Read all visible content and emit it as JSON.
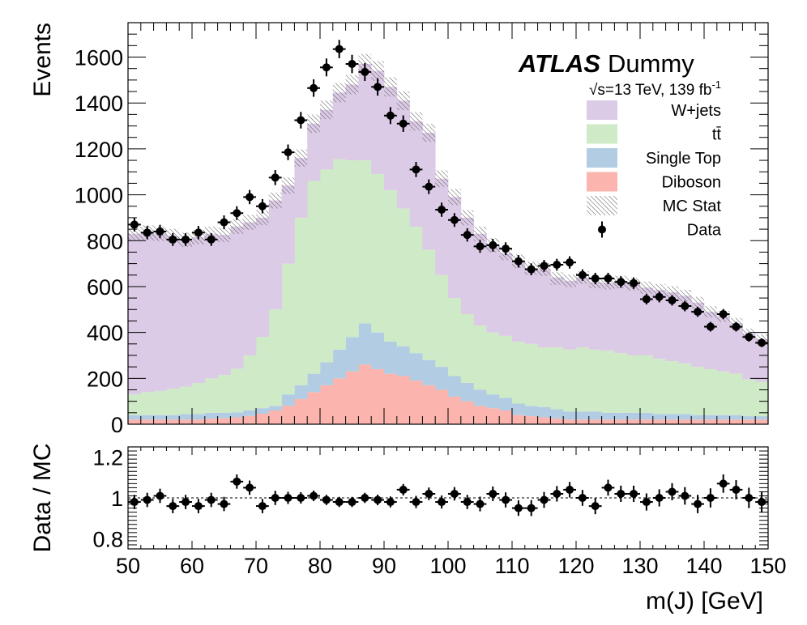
{
  "chart_data": {
    "type": "bar",
    "stacked": true,
    "xlabel": "m(J) [GeV]",
    "ylabel": "Events",
    "ratio_ylabel": "Data / MC",
    "xlim": [
      50,
      150
    ],
    "ylim": [
      0,
      1750
    ],
    "ratio_ylim": [
      0.75,
      1.25
    ],
    "bin_width": 2,
    "x_ticks": [
      50,
      60,
      70,
      80,
      90,
      100,
      110,
      120,
      130,
      140,
      150
    ],
    "y_ticks": [
      0,
      200,
      400,
      600,
      800,
      1000,
      1200,
      1400,
      1600
    ],
    "ratio_ticks": [
      0.8,
      1,
      1.2
    ],
    "ratio_tick_labels": [
      "0.8",
      "1",
      "1.2"
    ],
    "ratio_reference": 1,
    "labels": {
      "experiment": "ATLAS",
      "experiment_suffix": "Dummy",
      "energy_sqrt": "√s",
      "energy_text": "=13 TeV, 139 fb",
      "energy_sup": "-1"
    },
    "legend_position": "top-right",
    "legend": [
      {
        "label": "W+jets",
        "style": "fill",
        "color": "#dccbe6"
      },
      {
        "label": "tt̄",
        "style": "fill",
        "color": "#cfeac6"
      },
      {
        "label": "Single Top",
        "style": "fill",
        "color": "#b2cde3"
      },
      {
        "label": "Diboson",
        "style": "fill",
        "color": "#fbb4ae"
      },
      {
        "label": "MC Stat",
        "style": "hatch",
        "color": "#555555"
      },
      {
        "label": "Data",
        "style": "marker",
        "color": "#000000"
      }
    ],
    "series": [
      {
        "name": "Diboson",
        "color": "#fbb4ae",
        "values": [
          20,
          20,
          20,
          20,
          20,
          20,
          24,
          26,
          30,
          36,
          46,
          60,
          80,
          110,
          140,
          170,
          200,
          230,
          260,
          240,
          220,
          210,
          190,
          170,
          150,
          120,
          100,
          80,
          70,
          60,
          40,
          35,
          30,
          25,
          20,
          20,
          20,
          20,
          20,
          20,
          20,
          20,
          20,
          20,
          20,
          20,
          20,
          20,
          20,
          20
        ]
      },
      {
        "name": "Single Top",
        "color": "#b2cde3",
        "values": [
          20,
          20,
          20,
          20,
          24,
          25,
          26,
          24,
          22,
          24,
          24,
          20,
          50,
          60,
          80,
          100,
          125,
          150,
          180,
          160,
          140,
          130,
          120,
          110,
          100,
          90,
          80,
          70,
          60,
          55,
          50,
          45,
          45,
          40,
          35,
          35,
          35,
          30,
          30,
          30,
          30,
          25,
          25,
          25,
          20,
          20,
          20,
          20,
          15,
          15
        ]
      },
      {
        "name": "tt̄",
        "color": "#cfeac6",
        "values": [
          90,
          100,
          105,
          115,
          120,
          135,
          150,
          165,
          190,
          240,
          310,
          420,
          570,
          730,
          840,
          840,
          830,
          770,
          710,
          690,
          660,
          600,
          550,
          480,
          400,
          340,
          300,
          280,
          270,
          270,
          270,
          270,
          260,
          270,
          270,
          280,
          270,
          270,
          260,
          250,
          250,
          240,
          230,
          220,
          210,
          200,
          190,
          180,
          160,
          150
        ]
      },
      {
        "name": "W+jets",
        "color": "#dccbe6",
        "values": [
          700,
          695,
          685,
          665,
          640,
          635,
          630,
          610,
          620,
          580,
          520,
          475,
          340,
          260,
          250,
          260,
          290,
          330,
          420,
          450,
          450,
          470,
          460,
          510,
          420,
          440,
          420,
          400,
          380,
          360,
          350,
          330,
          340,
          305,
          300,
          305,
          295,
          295,
          310,
          310,
          295,
          300,
          300,
          295,
          280,
          250,
          240,
          220,
          200,
          185
        ]
      }
    ],
    "mc_stat_total": [
      830,
      835,
      830,
      820,
      804,
      815,
      830,
      825,
      862,
      880,
      900,
      975,
      1040,
      1160,
      1310,
      1370,
      1445,
      1480,
      1570,
      1540,
      1470,
      1410,
      1320,
      1270,
      1070,
      990,
      900,
      830,
      780,
      745,
      710,
      680,
      675,
      635,
      625,
      640,
      620,
      615,
      620,
      610,
      595,
      585,
      575,
      560,
      530,
      490,
      470,
      440,
      395,
      370
    ],
    "data": {
      "x": [
        51,
        53,
        55,
        57,
        59,
        61,
        63,
        65,
        67,
        69,
        71,
        73,
        75,
        77,
        79,
        81,
        83,
        85,
        87,
        89,
        91,
        93,
        95,
        97,
        99,
        101,
        103,
        105,
        107,
        109,
        111,
        113,
        115,
        117,
        119,
        121,
        123,
        125,
        127,
        129,
        131,
        133,
        135,
        137,
        139,
        141,
        143,
        145,
        147,
        149
      ],
      "y": [
        870,
        835,
        840,
        805,
        805,
        835,
        805,
        880,
        920,
        990,
        950,
        1075,
        1185,
        1325,
        1465,
        1555,
        1635,
        1570,
        1535,
        1470,
        1345,
        1310,
        1110,
        1035,
        935,
        890,
        825,
        775,
        780,
        765,
        710,
        675,
        690,
        695,
        705,
        650,
        635,
        635,
        620,
        615,
        545,
        555,
        540,
        515,
        490,
        425,
        480,
        425,
        380,
        355
      ],
      "yerr": [
        30,
        29,
        29,
        28,
        28,
        29,
        28,
        30,
        30,
        31,
        31,
        33,
        34,
        36,
        38,
        39,
        40,
        40,
        39,
        38,
        37,
        36,
        33,
        32,
        31,
        30,
        29,
        28,
        28,
        28,
        27,
        26,
        26,
        26,
        27,
        25,
        25,
        25,
        25,
        25,
        23,
        24,
        23,
        23,
        22,
        21,
        22,
        21,
        20,
        19
      ]
    },
    "ratio": {
      "x": [
        51,
        53,
        55,
        57,
        59,
        61,
        63,
        65,
        67,
        69,
        71,
        73,
        75,
        77,
        79,
        81,
        83,
        85,
        87,
        89,
        91,
        93,
        95,
        97,
        99,
        101,
        103,
        105,
        107,
        109,
        111,
        113,
        115,
        117,
        119,
        121,
        123,
        125,
        127,
        129,
        131,
        133,
        135,
        137,
        139,
        141,
        143,
        145,
        147,
        149
      ],
      "y": [
        0.98,
        0.99,
        1.01,
        0.96,
        0.98,
        0.96,
        0.99,
        0.97,
        1.08,
        1.05,
        0.96,
        1.0,
        1.0,
        1.0,
        1.01,
        0.99,
        0.98,
        0.98,
        1.0,
        0.99,
        0.98,
        1.04,
        0.98,
        1.02,
        0.98,
        1.02,
        0.98,
        0.97,
        1.02,
        0.99,
        0.95,
        0.95,
        0.99,
        1.02,
        1.04,
        1.0,
        0.96,
        1.05,
        1.02,
        1.02,
        0.98,
        1.0,
        1.03,
        1.01,
        0.97,
        1.0,
        1.07,
        1.04,
        1.0,
        0.98
      ],
      "yerr": [
        0.035,
        0.035,
        0.035,
        0.035,
        0.035,
        0.035,
        0.035,
        0.035,
        0.035,
        0.035,
        0.035,
        0.035,
        0.03,
        0.028,
        0.026,
        0.025,
        0.025,
        0.025,
        0.025,
        0.026,
        0.027,
        0.028,
        0.03,
        0.031,
        0.032,
        0.033,
        0.035,
        0.036,
        0.036,
        0.037,
        0.038,
        0.039,
        0.039,
        0.038,
        0.038,
        0.039,
        0.04,
        0.039,
        0.04,
        0.04,
        0.042,
        0.042,
        0.042,
        0.043,
        0.045,
        0.047,
        0.045,
        0.047,
        0.05,
        0.052
      ]
    }
  }
}
